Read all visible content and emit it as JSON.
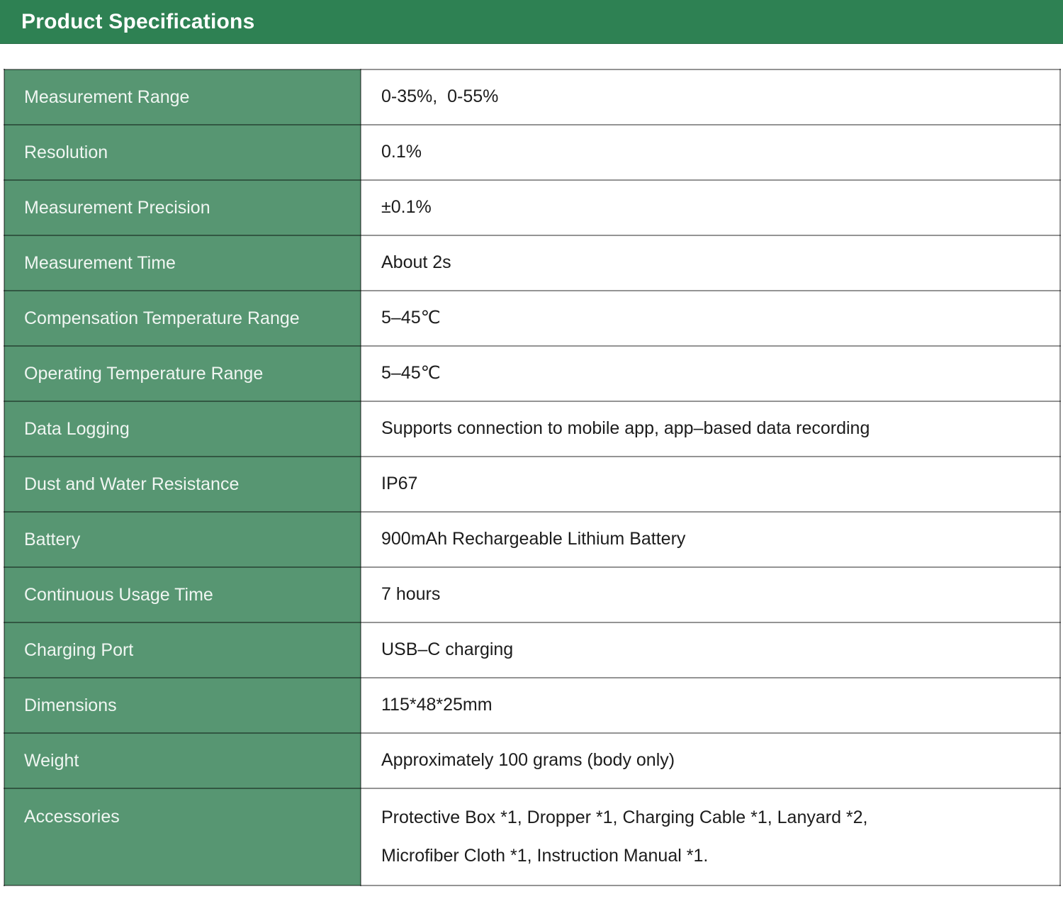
{
  "header": {
    "title": "Product Specifications"
  },
  "colors": {
    "header_bg": "#2e8153",
    "label_cell_bg": "#579672",
    "label_text": "#f0f6f2",
    "value_text": "#1c1c1c",
    "row_border": "rgba(0,0,0,0.42)"
  },
  "table": {
    "rows": [
      {
        "label": "Measurement Range",
        "value": "0-35%,  0-55%"
      },
      {
        "label": "Resolution",
        "value": "0.1%"
      },
      {
        "label": "Measurement Precision",
        "value": "±0.1%"
      },
      {
        "label": "Measurement Time",
        "value": "About 2s"
      },
      {
        "label": "Compensation Temperature Range",
        "value": "5–45℃"
      },
      {
        "label": "Operating Temperature Range",
        "value": "5–45℃"
      },
      {
        "label": "Data Logging",
        "value": "Supports connection to mobile app, app–based data recording"
      },
      {
        "label": "Dust and Water Resistance",
        "value": "IP67"
      },
      {
        "label": "Battery",
        "value": "900mAh Rechargeable Lithium Battery"
      },
      {
        "label": "Continuous Usage Time",
        "value": "7 hours"
      },
      {
        "label": "Charging Port",
        "value": "USB–C charging"
      },
      {
        "label": "Dimensions",
        "value": "115*48*25mm"
      },
      {
        "label": "Weight",
        "value": "Approximately 100 grams (body only)"
      },
      {
        "label": "Accessories",
        "value": "Protective Box *1, Dropper *1, Charging Cable *1, Lanyard *2,\nMicrofiber Cloth *1, Instruction Manual *1."
      }
    ]
  }
}
